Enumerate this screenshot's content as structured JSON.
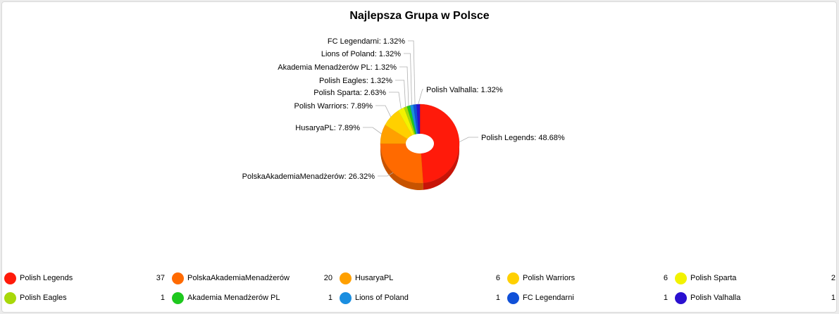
{
  "chart_data": {
    "type": "pie",
    "title": "Najlepsza Grupa w Polsce",
    "slices": [
      {
        "name": "Polish Legends",
        "value": 37,
        "percent_label": "48.68%",
        "color": "#ff1a0a"
      },
      {
        "name": "PolskaAkademiaMenadżerów",
        "value": 20,
        "percent_label": "26.32%",
        "color": "#ff6a00"
      },
      {
        "name": "HusaryaPL",
        "value": 6,
        "percent_label": "7.89%",
        "color": "#ffa000"
      },
      {
        "name": "Polish Warriors",
        "value": 6,
        "percent_label": "7.89%",
        "color": "#ffd000"
      },
      {
        "name": "Polish Sparta",
        "value": 2,
        "percent_label": "2.63%",
        "color": "#f2f200"
      },
      {
        "name": "Polish Eagles",
        "value": 1,
        "percent_label": "1.32%",
        "color": "#a8d80a"
      },
      {
        "name": "Akademia Menadżerów PL",
        "value": 1,
        "percent_label": "1.32%",
        "color": "#1ec81e"
      },
      {
        "name": "Lions of Poland",
        "value": 1,
        "percent_label": "1.32%",
        "color": "#1a8ee0"
      },
      {
        "name": "FC Legendarni",
        "value": 1,
        "percent_label": "1.32%",
        "color": "#1050d8"
      },
      {
        "name": "Polish Valhalla",
        "value": 1,
        "percent_label": "1.32%",
        "color": "#2a10d0"
      }
    ],
    "style": "3d-donut",
    "legend_position": "bottom"
  }
}
